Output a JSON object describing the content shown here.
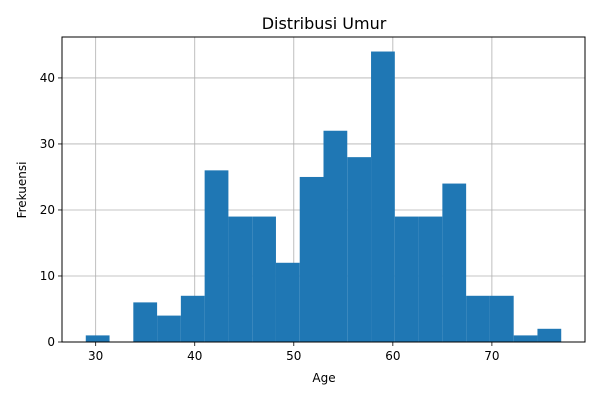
{
  "chart_data": {
    "type": "bar",
    "title": "Distribusi Umur",
    "xlabel": "Age",
    "ylabel": "Frekuensi",
    "bin_edges": [
      29,
      31.4,
      33.8,
      36.2,
      38.6,
      41,
      43.4,
      45.8,
      48.2,
      50.6,
      53,
      55.4,
      57.8,
      60.2,
      62.6,
      65,
      67.4,
      69.8,
      72.2,
      74.6,
      77
    ],
    "values": [
      1,
      0,
      6,
      4,
      7,
      26,
      19,
      19,
      12,
      25,
      32,
      28,
      44,
      19,
      19,
      24,
      7,
      7,
      1,
      2
    ],
    "xlim": [
      26.6,
      79.4
    ],
    "ylim": [
      0,
      46.2
    ],
    "x_ticks": [
      30,
      40,
      50,
      60,
      70
    ],
    "y_ticks": [
      0,
      10,
      20,
      30,
      40
    ],
    "grid": true,
    "bar_color": "#1f77b4"
  }
}
